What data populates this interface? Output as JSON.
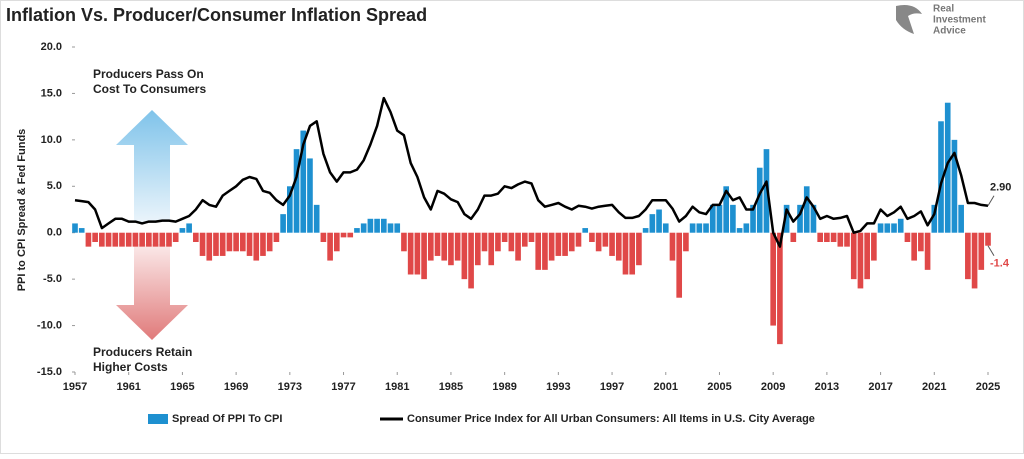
{
  "chart_data": {
    "type": "bar_line",
    "title": "Inflation Vs. Producer/Consumer Inflation Spread",
    "logo": [
      "Real",
      "Investment",
      "Advice"
    ],
    "y_label": "PPI to CPI Spread & Fed Funds",
    "annotations": {
      "top": [
        "Producers Pass On",
        "Cost To Consumers"
      ],
      "bottom": [
        "Producers Retain",
        "Higher Costs"
      ]
    },
    "xlim": [
      1957,
      2025
    ],
    "xticks": [
      1957,
      1961,
      1965,
      1969,
      1973,
      1977,
      1981,
      1985,
      1989,
      1993,
      1997,
      2001,
      2005,
      2009,
      2013,
      2017,
      2021,
      2025
    ],
    "ylim": [
      -15,
      20
    ],
    "yticks": [
      {
        "value": -15,
        "label": "-15.0"
      },
      {
        "value": -10,
        "label": "-10.0"
      },
      {
        "value": -5,
        "label": "-5.0"
      },
      {
        "value": 0,
        "label": "0.0"
      },
      {
        "value": 5,
        "label": "5.0"
      },
      {
        "value": 10,
        "label": "10.0"
      },
      {
        "value": 15,
        "label": "15.0"
      },
      {
        "value": 20,
        "label": "20.0"
      }
    ],
    "grid": false,
    "legend": "bottom",
    "x": [
      1957,
      1957.5,
      1958,
      1958.5,
      1959,
      1959.5,
      1960,
      1960.5,
      1961,
      1961.5,
      1962,
      1962.5,
      1963,
      1963.5,
      1964,
      1964.5,
      1965,
      1965.5,
      1966,
      1966.5,
      1967,
      1967.5,
      1968,
      1968.5,
      1969,
      1969.5,
      1970,
      1970.5,
      1971,
      1971.5,
      1972,
      1972.5,
      1973,
      1973.5,
      1974,
      1974.5,
      1975,
      1975.5,
      1976,
      1976.5,
      1977,
      1977.5,
      1978,
      1978.5,
      1979,
      1979.5,
      1980,
      1980.5,
      1981,
      1981.5,
      1982,
      1982.5,
      1983,
      1983.5,
      1984,
      1984.5,
      1985,
      1985.5,
      1986,
      1986.5,
      1987,
      1987.5,
      1988,
      1988.5,
      1989,
      1989.5,
      1990,
      1990.5,
      1991,
      1991.5,
      1992,
      1992.5,
      1993,
      1993.5,
      1994,
      1994.5,
      1995,
      1995.5,
      1996,
      1996.5,
      1997,
      1997.5,
      1998,
      1998.5,
      1999,
      1999.5,
      2000,
      2000.5,
      2001,
      2001.5,
      2002,
      2002.5,
      2003,
      2003.5,
      2004,
      2004.5,
      2005,
      2005.5,
      2006,
      2006.5,
      2007,
      2007.5,
      2008,
      2008.5,
      2009,
      2009.5,
      2010,
      2010.5,
      2011,
      2011.5,
      2012,
      2012.5,
      2013,
      2013.5,
      2014,
      2014.5,
      2015,
      2015.5,
      2016,
      2016.5,
      2017,
      2017.5,
      2018,
      2018.5,
      2019,
      2019.5,
      2020,
      2020.5,
      2021,
      2021.5,
      2022,
      2022.5,
      2023,
      2023.5,
      2024,
      2024.5,
      2025
    ],
    "series": [
      {
        "name": "Spread Of PPI To CPI",
        "kind": "bar",
        "color": "#1e90d0",
        "negative_color": "#e04848",
        "values": [
          1,
          0.5,
          -1.5,
          -1,
          -1.5,
          -1.5,
          -1.5,
          -1.5,
          -1.5,
          -1.5,
          -1.5,
          -1.5,
          -1.5,
          -1.5,
          -1.5,
          -1,
          0.5,
          1,
          -1,
          -2.5,
          -3,
          -2.5,
          -2.5,
          -2,
          -2,
          -2,
          -2.5,
          -3,
          -2.5,
          -2,
          -1,
          2,
          5,
          9,
          11,
          8,
          3,
          -1,
          -3,
          -2,
          -0.5,
          -0.5,
          0.5,
          1,
          1.5,
          1.5,
          1.5,
          1,
          1,
          -2,
          -4.5,
          -4.5,
          -5,
          -3,
          -2.5,
          -3,
          -3.5,
          -3,
          -5,
          -6,
          -3.5,
          -2,
          -3.5,
          -2,
          -1,
          -2,
          -3,
          -1.5,
          -1,
          -4,
          -4,
          -3,
          -2.5,
          -2.5,
          -2,
          -1.5,
          0.5,
          -1,
          -2,
          -1.5,
          -2.5,
          -3,
          -4.5,
          -4.5,
          -3.5,
          0.5,
          2,
          2.5,
          1,
          -3,
          -7,
          -2,
          1,
          1,
          1,
          3,
          3,
          5,
          3,
          0.5,
          1,
          3,
          7,
          9,
          -10,
          -12,
          3,
          -1,
          3,
          5,
          3,
          -1,
          -1,
          -1,
          -1.5,
          -1.5,
          -5,
          -6,
          -5,
          -3,
          1,
          1,
          1,
          1.5,
          -1,
          -3,
          -2,
          -4,
          3,
          12,
          14,
          10,
          3,
          -5,
          -6,
          -4,
          -1.4
        ],
        "value_labels": [
          null,
          null,
          null,
          null,
          null,
          null,
          null,
          null,
          null,
          null,
          null,
          null,
          null,
          null,
          null,
          null,
          null,
          null,
          null,
          null,
          null,
          null,
          null,
          null,
          null,
          null,
          null,
          null,
          null,
          null,
          null,
          null,
          null,
          null,
          null,
          null,
          null,
          null,
          null,
          null,
          null,
          null,
          null,
          null,
          null,
          null,
          null,
          null,
          null,
          null,
          null,
          null,
          null,
          null,
          null,
          null,
          null,
          null,
          null,
          null,
          null,
          null,
          null,
          null,
          null,
          null,
          null,
          null,
          null,
          null,
          null,
          null,
          null,
          null,
          null,
          null,
          null,
          null,
          null,
          null,
          null,
          null,
          null,
          null,
          null,
          null,
          null,
          null,
          null,
          null,
          null,
          null,
          null,
          null,
          null,
          null,
          null,
          null,
          null,
          null,
          null,
          null,
          null,
          null,
          null,
          null,
          null,
          null,
          null,
          null,
          null,
          null,
          null,
          null,
          null,
          null,
          null,
          null,
          null,
          null,
          null,
          null,
          null,
          null,
          null,
          null,
          null,
          null,
          null,
          null,
          null,
          null,
          null,
          null,
          null,
          null,
          "-1.4"
        ]
      },
      {
        "name": "Consumer Price Index for All Urban Consumers: All Items in U.S. City Average",
        "kind": "line",
        "color": "#000000",
        "values": [
          3.5,
          3.4,
          3.3,
          2.5,
          0.5,
          1,
          1.5,
          1.5,
          1.2,
          1.2,
          1,
          1.2,
          1.2,
          1.3,
          1.3,
          1.2,
          1.5,
          1.8,
          2.5,
          3.5,
          3,
          2.8,
          4,
          4.5,
          5,
          5.7,
          6,
          5.8,
          4.5,
          4.3,
          3.5,
          3,
          4,
          6,
          9.5,
          11.5,
          12,
          8.5,
          6.5,
          5.5,
          6.5,
          6.5,
          6.8,
          7.8,
          9.5,
          11.5,
          14.5,
          13,
          11,
          10.5,
          7.5,
          6,
          3.8,
          2.5,
          4.5,
          4.2,
          3.6,
          3.3,
          2,
          1.5,
          2.5,
          4,
          4,
          4.2,
          5,
          4.8,
          5.2,
          5.5,
          5.3,
          3.5,
          2.8,
          3,
          3.2,
          2.8,
          2.5,
          2.9,
          2.8,
          2.6,
          2.8,
          2.9,
          3,
          2.2,
          1.6,
          1.6,
          1.8,
          2.5,
          3.5,
          3.5,
          3.5,
          2.6,
          1.2,
          1.8,
          2.8,
          2.2,
          2,
          3,
          3,
          4.5,
          3.5,
          3.8,
          2.5,
          2.5,
          4.2,
          5.5,
          0,
          -1.5,
          2.5,
          1.2,
          2,
          3.8,
          2.8,
          1.5,
          1.8,
          1.5,
          1.6,
          1.8,
          0,
          0.2,
          1,
          1,
          2.5,
          1.8,
          2.2,
          2.8,
          1.5,
          1.8,
          2.3,
          0.8,
          2,
          5.3,
          7.5,
          8.6,
          6.2,
          3.2,
          3.2,
          3,
          2.9
        ],
        "value_labels": [
          null,
          null,
          null,
          null,
          null,
          null,
          null,
          null,
          null,
          null,
          null,
          null,
          null,
          null,
          null,
          null,
          null,
          null,
          null,
          null,
          null,
          null,
          null,
          null,
          null,
          null,
          null,
          null,
          null,
          null,
          null,
          null,
          null,
          null,
          null,
          null,
          null,
          null,
          null,
          null,
          null,
          null,
          null,
          null,
          null,
          null,
          null,
          null,
          null,
          null,
          null,
          null,
          null,
          null,
          null,
          null,
          null,
          null,
          null,
          null,
          null,
          null,
          null,
          null,
          null,
          null,
          null,
          null,
          null,
          null,
          null,
          null,
          null,
          null,
          null,
          null,
          null,
          null,
          null,
          null,
          null,
          null,
          null,
          null,
          null,
          null,
          null,
          null,
          null,
          null,
          null,
          null,
          null,
          null,
          null,
          null,
          null,
          null,
          null,
          null,
          null,
          null,
          null,
          null,
          null,
          null,
          null,
          null,
          null,
          null,
          null,
          null,
          null,
          null,
          null,
          null,
          null,
          null,
          null,
          null,
          null,
          null,
          null,
          null,
          null,
          null,
          null,
          null,
          null,
          null,
          null,
          null,
          null,
          null,
          null,
          null,
          "2.90"
        ]
      }
    ]
  }
}
